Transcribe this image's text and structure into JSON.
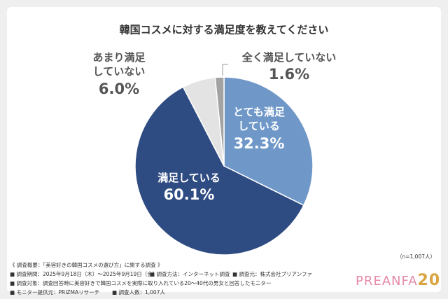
{
  "chart_data": {
    "type": "pie",
    "title": "韓国コスメに対する満足度を教えてください",
    "categories": [
      "とても満足している",
      "満足している",
      "あまり満足していない",
      "全く満足していない"
    ],
    "values": [
      32.3,
      60.1,
      6.0,
      1.6
    ],
    "value_labels": [
      "32.3%",
      "60.1%",
      "6.0%",
      "1.6%"
    ],
    "colors": [
      "#6f98c9",
      "#2e4b82",
      "#e3e3e3",
      "#a3a3a3"
    ]
  },
  "sample_note": "（n=1,007人）",
  "footnotes": {
    "heading": "《 調査概要：「美容好きの韓国コスメの選び方」に関する調査 》",
    "period": "■ 調査期間：2025年9月18日（木）～2025年9月19日（金）",
    "method": "■ 調査方法：インターネット調査",
    "source": "■ 調査元：株式会社プリアンファ",
    "target": "■ 調査対象：調査回答時に美容好きで韓国コスメを実際に取り入れている20～40代の男女と回答したモニター",
    "provider": "■ モニター提供元：PRIZMAリサーチ",
    "count": "■ 調査人数：1,007人"
  },
  "logo": {
    "text": "PREANFA",
    "number": "20"
  }
}
